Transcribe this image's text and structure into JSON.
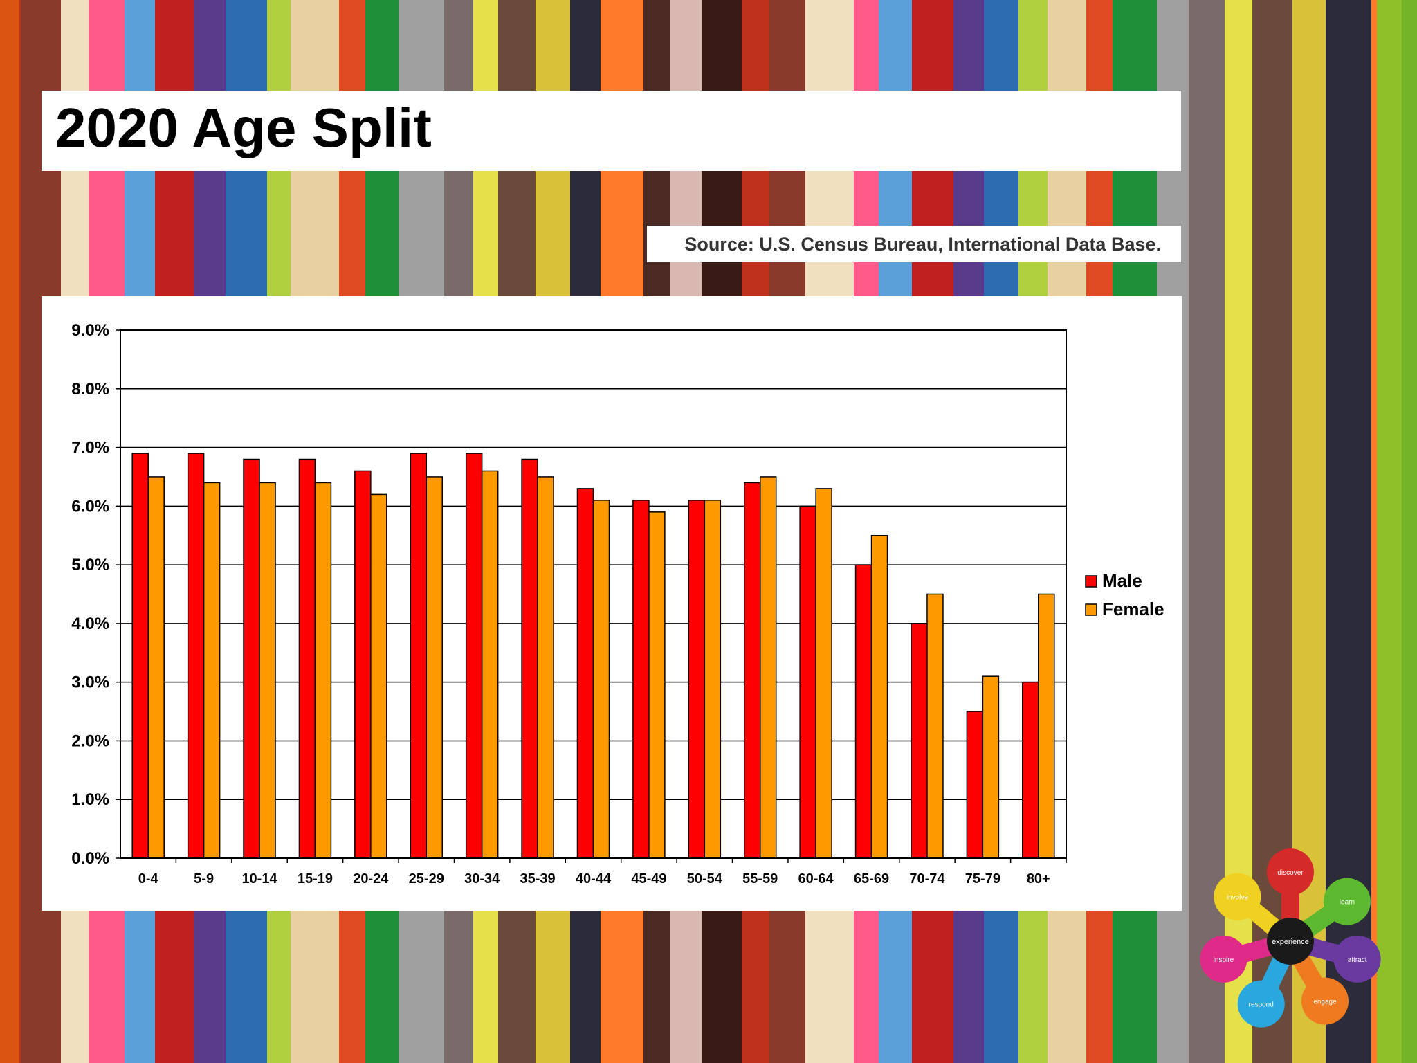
{
  "slide": {
    "title": "2020 Age Split",
    "source": "Source: U.S. Census Bureau, International Data Base."
  },
  "colors": {
    "male": "#ff0000",
    "female": "#ff9900"
  },
  "logo": {
    "center_label": "experience",
    "petals": [
      "discover",
      "learn",
      "attract",
      "engage",
      "respond",
      "inspire",
      "involve"
    ]
  },
  "chart_data": {
    "type": "bar",
    "categories": [
      "0-4",
      "5-9",
      "10-14",
      "15-19",
      "20-24",
      "25-29",
      "30-34",
      "35-39",
      "40-44",
      "45-49",
      "50-54",
      "55-59",
      "60-64",
      "65-69",
      "70-74",
      "75-79",
      "80+"
    ],
    "series": [
      {
        "name": "Male",
        "values": [
          6.9,
          6.9,
          6.8,
          6.8,
          6.6,
          6.9,
          6.9,
          6.8,
          6.3,
          6.1,
          6.1,
          6.4,
          6.0,
          5.0,
          4.0,
          2.5,
          3.0
        ]
      },
      {
        "name": "Female",
        "values": [
          6.5,
          6.4,
          6.4,
          6.4,
          6.2,
          6.5,
          6.6,
          6.5,
          6.1,
          5.9,
          6.1,
          6.5,
          6.3,
          5.5,
          4.5,
          3.1,
          4.5
        ]
      }
    ],
    "yticks": [
      "0.0%",
      "1.0%",
      "2.0%",
      "3.0%",
      "4.0%",
      "5.0%",
      "6.0%",
      "7.0%",
      "8.0%",
      "9.0%"
    ],
    "ylim": [
      0,
      9
    ],
    "grid": true,
    "legend": "right"
  }
}
